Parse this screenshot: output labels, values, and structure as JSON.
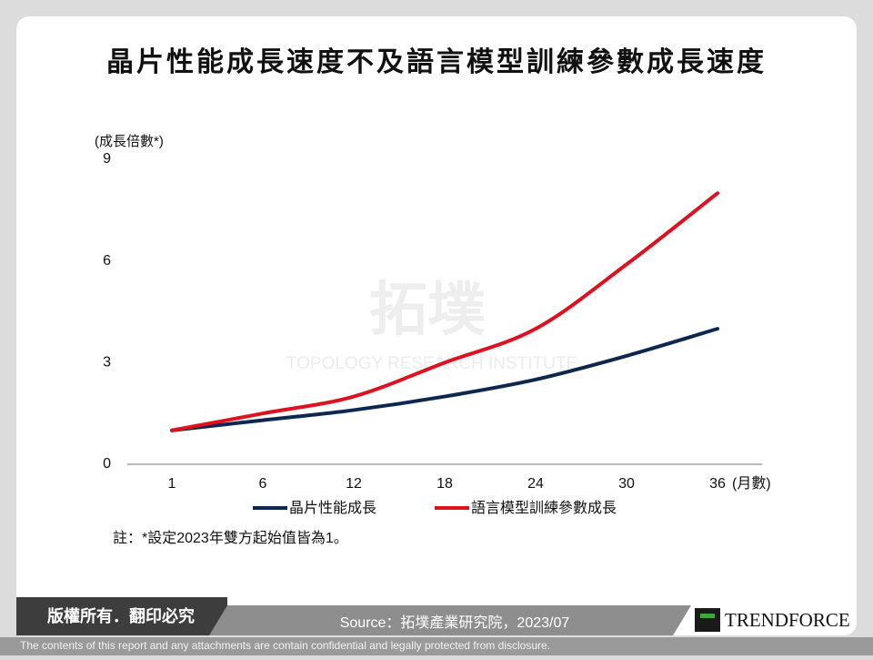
{
  "chart_data": {
    "type": "line",
    "title": "晶片性能成長速度不及語言模型訓練參數成長速度",
    "y_label": "(成長倍數*)",
    "x_label": "(月數)",
    "categories": [
      "1",
      "6",
      "12",
      "18",
      "24",
      "30",
      "36"
    ],
    "series": [
      {
        "name": "晶片性能成長",
        "color": "#0d2850",
        "values": [
          1,
          1.3,
          1.6,
          2,
          2.5,
          3.2,
          4
        ]
      },
      {
        "name": "語言模型訓練參數成長",
        "color": "#e0101e",
        "values": [
          1,
          1.5,
          2,
          3,
          4,
          5.9,
          8
        ]
      }
    ],
    "ylim": [
      0,
      9
    ],
    "yticks": [
      0,
      3,
      6,
      9
    ],
    "grid": false,
    "note": "註：*設定2023年雙方起始值皆為1。"
  },
  "watermark": {
    "name": "拓墣",
    "subtitle": "TOPOLOGY RESEARCH INSTITUTE"
  },
  "footer": {
    "copyright": "版權所有．翻印必究",
    "source": "Source：拓墣產業研究院，2023/07",
    "logo": "TRENDFORCE",
    "disclaimer": "The contents of this report and any attachments are contain confidential and legally protected from disclosure."
  }
}
